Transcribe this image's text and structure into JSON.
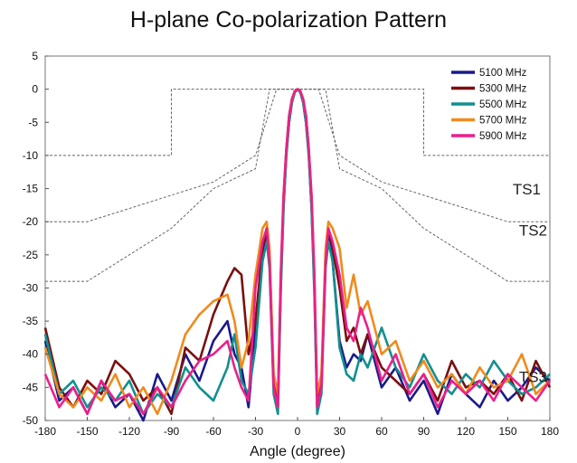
{
  "chart_data": {
    "type": "line",
    "title": "H-plane Co-polarization Pattern",
    "xlabel": "Angle (degree)",
    "ylabel": "",
    "xlim": [
      -180,
      180
    ],
    "ylim": [
      -50,
      5
    ],
    "x_ticks": [
      "-180",
      "-150",
      "-120",
      "-90",
      "-60",
      "-30",
      "0",
      "30",
      "60",
      "90",
      "120",
      "150",
      "180"
    ],
    "y_ticks": [
      "5",
      "0",
      "-5",
      "-10",
      "-15",
      "-20",
      "-25",
      "-30",
      "-35",
      "-40",
      "-45",
      "-50"
    ],
    "legend_position": "top-right",
    "masks": [
      {
        "name": "TS1",
        "x": [
          -180,
          -90,
          -90,
          -15,
          15,
          90,
          90,
          180
        ],
        "y": [
          -10,
          -10,
          0,
          0,
          0,
          0,
          -10,
          -10
        ]
      },
      {
        "name": "TS2",
        "x": [
          -180,
          -150,
          -60,
          -30,
          -15,
          15,
          30,
          60,
          150,
          180
        ],
        "y": [
          -20,
          -20,
          -14,
          -10,
          0,
          0,
          -10,
          -14,
          -20,
          -20
        ]
      },
      {
        "name": "TS3",
        "x": [
          -180,
          -150,
          -90,
          -60,
          -30,
          -20,
          20,
          30,
          60,
          90,
          150,
          180
        ],
        "y": [
          -29,
          -29,
          -21,
          -15,
          -12,
          0,
          0,
          -12,
          -15,
          -21,
          -29,
          -29
        ]
      }
    ],
    "series": [
      {
        "name": "5100 MHz",
        "color": "#1a1a8c",
        "x": [
          -180,
          -170,
          -160,
          -150,
          -140,
          -130,
          -120,
          -110,
          -100,
          -90,
          -80,
          -70,
          -60,
          -50,
          -45,
          -40,
          -35,
          -30,
          -25,
          -22,
          -20,
          -17,
          -14,
          -12,
          -10,
          -8,
          -6,
          -4,
          -2,
          0,
          2,
          4,
          6,
          8,
          10,
          12,
          14,
          17,
          20,
          22,
          25,
          30,
          35,
          40,
          45,
          50,
          60,
          70,
          80,
          90,
          100,
          110,
          120,
          130,
          140,
          150,
          160,
          170,
          180
        ],
        "y": [
          -38,
          -47,
          -45,
          -49,
          -44,
          -48,
          -46,
          -50,
          -43,
          -47,
          -40,
          -44,
          -38,
          -35,
          -40,
          -42,
          -48,
          -36,
          -25,
          -22,
          -26,
          -45,
          -48,
          -30,
          -18,
          -10,
          -5,
          -2,
          -0.5,
          0,
          -0.5,
          -2,
          -5,
          -10,
          -18,
          -30,
          -48,
          -45,
          -26,
          -22,
          -26,
          -38,
          -42,
          -40,
          -41,
          -37,
          -45,
          -42,
          -47,
          -44,
          -49,
          -43,
          -46,
          -48,
          -44,
          -47,
          -45,
          -42,
          -44
        ]
      },
      {
        "name": "5300 MHz",
        "color": "#7a1010",
        "x": [
          -180,
          -170,
          -160,
          -150,
          -140,
          -130,
          -120,
          -110,
          -100,
          -90,
          -80,
          -70,
          -60,
          -50,
          -45,
          -40,
          -35,
          -30,
          -25,
          -22,
          -20,
          -17,
          -14,
          -12,
          -10,
          -8,
          -6,
          -4,
          -2,
          0,
          2,
          4,
          6,
          8,
          10,
          12,
          14,
          17,
          20,
          22,
          25,
          30,
          35,
          40,
          45,
          50,
          60,
          70,
          80,
          90,
          100,
          110,
          120,
          130,
          140,
          150,
          160,
          170,
          180
        ],
        "y": [
          -36,
          -45,
          -48,
          -44,
          -46,
          -41,
          -43,
          -47,
          -45,
          -49,
          -39,
          -41,
          -34,
          -29,
          -27,
          -28,
          -40,
          -35,
          -24,
          -21,
          -25,
          -44,
          -47,
          -29,
          -17,
          -9,
          -4,
          -1.5,
          -0.3,
          0,
          -0.3,
          -1.5,
          -4,
          -9,
          -17,
          -29,
          -47,
          -44,
          -25,
          -21,
          -24,
          -30,
          -38,
          -36,
          -40,
          -37,
          -42,
          -44,
          -46,
          -43,
          -47,
          -41,
          -45,
          -44,
          -46,
          -43,
          -47,
          -41,
          -45
        ]
      },
      {
        "name": "5500 MHz",
        "color": "#138f8f",
        "x": [
          -180,
          -170,
          -160,
          -150,
          -140,
          -130,
          -120,
          -110,
          -100,
          -90,
          -80,
          -70,
          -60,
          -50,
          -45,
          -40,
          -35,
          -30,
          -25,
          -22,
          -20,
          -17,
          -14,
          -12,
          -10,
          -8,
          -6,
          -4,
          -2,
          0,
          2,
          4,
          6,
          8,
          10,
          12,
          14,
          17,
          20,
          22,
          25,
          30,
          35,
          40,
          45,
          50,
          60,
          70,
          80,
          90,
          100,
          110,
          120,
          130,
          140,
          150,
          160,
          170,
          180
        ],
        "y": [
          -37,
          -46,
          -44,
          -48,
          -45,
          -47,
          -44,
          -49,
          -46,
          -48,
          -42,
          -45,
          -47,
          -42,
          -37,
          -44,
          -46,
          -39,
          -26,
          -23,
          -27,
          -46,
          -49,
          -31,
          -18,
          -10,
          -5,
          -2,
          -0.5,
          0,
          -0.5,
          -2,
          -5,
          -10,
          -18,
          -31,
          -49,
          -46,
          -27,
          -23,
          -26,
          -39,
          -43,
          -44,
          -40,
          -42,
          -36,
          -42,
          -45,
          -40,
          -44,
          -46,
          -43,
          -45,
          -41,
          -44,
          -46,
          -45,
          -43
        ]
      },
      {
        "name": "5700 MHz",
        "color": "#f08a1c",
        "x": [
          -180,
          -170,
          -160,
          -150,
          -140,
          -130,
          -120,
          -110,
          -100,
          -90,
          -80,
          -70,
          -60,
          -50,
          -45,
          -40,
          -35,
          -30,
          -25,
          -22,
          -20,
          -17,
          -14,
          -12,
          -10,
          -8,
          -6,
          -4,
          -2,
          0,
          2,
          4,
          6,
          8,
          10,
          12,
          14,
          17,
          20,
          22,
          25,
          30,
          35,
          40,
          45,
          50,
          60,
          70,
          80,
          90,
          100,
          110,
          120,
          130,
          140,
          150,
          160,
          170,
          180
        ],
        "y": [
          -39,
          -46,
          -48,
          -45,
          -47,
          -43,
          -48,
          -45,
          -49,
          -44,
          -37,
          -34,
          -32,
          -31,
          -35,
          -42,
          -38,
          -28,
          -21,
          -20,
          -24,
          -43,
          -46,
          -28,
          -16,
          -9,
          -4,
          -1.5,
          -0.3,
          0,
          -0.3,
          -1.5,
          -4,
          -9,
          -16,
          -28,
          -46,
          -43,
          -24,
          -20,
          -21,
          -24,
          -33,
          -28,
          -34,
          -32,
          -40,
          -38,
          -44,
          -41,
          -45,
          -43,
          -46,
          -42,
          -45,
          -44,
          -40,
          -46,
          -44
        ]
      },
      {
        "name": "5900 MHz",
        "color": "#ec1f8a",
        "x": [
          -180,
          -170,
          -160,
          -150,
          -140,
          -130,
          -120,
          -110,
          -100,
          -90,
          -80,
          -70,
          -60,
          -50,
          -45,
          -40,
          -35,
          -30,
          -25,
          -22,
          -20,
          -17,
          -14,
          -12,
          -10,
          -8,
          -6,
          -4,
          -2,
          0,
          2,
          4,
          6,
          8,
          10,
          12,
          14,
          17,
          20,
          22,
          25,
          30,
          35,
          40,
          45,
          50,
          60,
          70,
          80,
          90,
          100,
          110,
          120,
          130,
          140,
          150,
          160,
          170,
          180
        ],
        "y": [
          -43,
          -48,
          -45,
          -49,
          -44,
          -47,
          -46,
          -49,
          -45,
          -48,
          -44,
          -41,
          -40,
          -38,
          -42,
          -45,
          -47,
          -30,
          -23,
          -21,
          -26,
          -45,
          -48,
          -28,
          -16,
          -9,
          -4,
          -1.5,
          -0.3,
          0,
          -0.3,
          -1.5,
          -4,
          -9,
          -16,
          -28,
          -48,
          -45,
          -26,
          -21,
          -23,
          -28,
          -36,
          -38,
          -33,
          -36,
          -44,
          -40,
          -46,
          -43,
          -48,
          -44,
          -46,
          -44,
          -47,
          -43,
          -45,
          -47,
          -44
        ]
      }
    ],
    "annotations": [
      "TS1",
      "TS2",
      "TS3"
    ]
  }
}
